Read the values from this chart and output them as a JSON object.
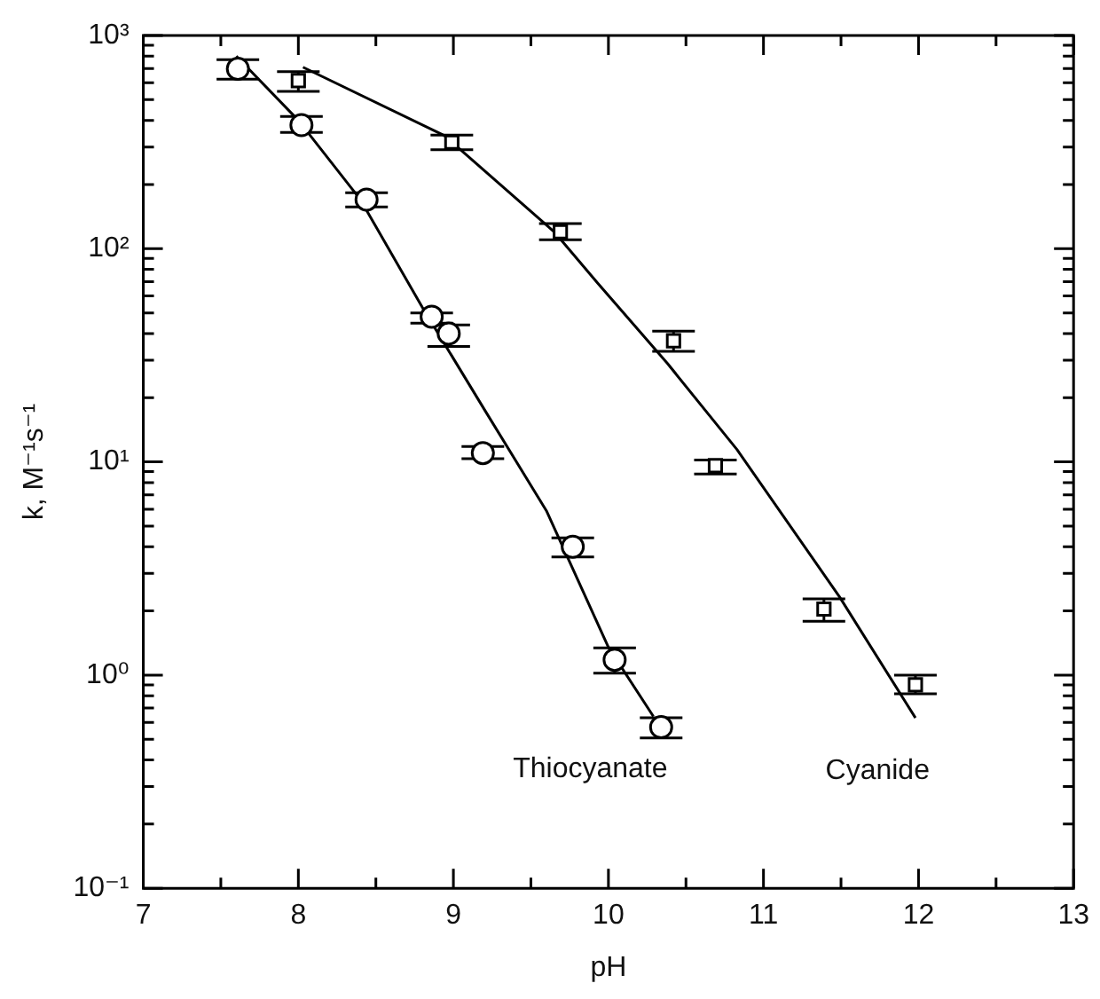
{
  "chart_data": {
    "type": "scatter",
    "xlabel": "pH",
    "ylabel": "k, M⁻¹s⁻¹",
    "log": "y",
    "grid": false,
    "legend": false,
    "xlim": [
      7,
      13
    ],
    "xticks": [
      7,
      {
        "value": 7.5,
        "label": null
      },
      8,
      {
        "value": 8.5,
        "label": null
      },
      9,
      {
        "value": 9.5,
        "label": null
      },
      10,
      {
        "value": 10.5,
        "label": null
      },
      11,
      {
        "value": 11.5,
        "label": null
      },
      12,
      {
        "value": 12.5,
        "label": null
      },
      13
    ],
    "ylim": [
      0.1,
      1000
    ],
    "yticks": [
      {
        "value": 0.1,
        "label": "10⁻¹"
      },
      {
        "value": 0.2,
        "label": null
      },
      {
        "value": 0.3,
        "label": null
      },
      {
        "value": 0.4,
        "label": null
      },
      {
        "value": 0.5,
        "label": null
      },
      {
        "value": 0.6,
        "label": null
      },
      {
        "value": 0.7,
        "label": null
      },
      {
        "value": 0.8,
        "label": null
      },
      {
        "value": 0.9,
        "label": null
      },
      {
        "value": 1,
        "label": "10⁰"
      },
      {
        "value": 2,
        "label": null
      },
      {
        "value": 3,
        "label": null
      },
      {
        "value": 4,
        "label": null
      },
      {
        "value": 5,
        "label": null
      },
      {
        "value": 6,
        "label": null
      },
      {
        "value": 7,
        "label": null
      },
      {
        "value": 8,
        "label": null
      },
      {
        "value": 9,
        "label": null
      },
      {
        "value": 10,
        "label": "10¹"
      },
      {
        "value": 20,
        "label": null
      },
      {
        "value": 30,
        "label": null
      },
      {
        "value": 40,
        "label": null
      },
      {
        "value": 50,
        "label": null
      },
      {
        "value": 60,
        "label": null
      },
      {
        "value": 70,
        "label": null
      },
      {
        "value": 80,
        "label": null
      },
      {
        "value": 90,
        "label": null
      },
      {
        "value": 100,
        "label": "10²"
      },
      {
        "value": 200,
        "label": null
      },
      {
        "value": 300,
        "label": null
      },
      {
        "value": 400,
        "label": null
      },
      {
        "value": 500,
        "label": null
      },
      {
        "value": 600,
        "label": null
      },
      {
        "value": 700,
        "label": null
      },
      {
        "value": 800,
        "label": null
      },
      {
        "value": 900,
        "label": null
      },
      {
        "value": 1000,
        "label": "10³"
      }
    ],
    "series": [
      {
        "type": "scatter",
        "marker": "circle",
        "color": "#000000",
        "x": [
          7.61,
          8.02,
          8.44,
          8.86,
          8.97,
          9.19,
          9.77,
          10.04,
          10.34
        ],
        "values": [
          698,
          380,
          170,
          48,
          40,
          11,
          4.0,
          1.18,
          0.57
        ],
        "errors": [
          [
            624,
            771
          ],
          [
            351,
            417
          ],
          [
            157,
            183
          ],
          [
            44.7,
            50
          ],
          [
            34.8,
            43.9
          ],
          [
            10.35,
            11.8
          ],
          [
            3.58,
            4.4
          ],
          [
            1.02,
            1.34
          ],
          [
            0.507,
            0.63
          ]
        ]
      },
      {
        "type": "scatter",
        "marker": "square",
        "color": "#000000",
        "x": [
          8.0,
          8.99,
          9.69,
          10.42,
          10.69,
          11.39,
          11.98
        ],
        "values": [
          614,
          316,
          120,
          37,
          9.6,
          2.04,
          0.9
        ],
        "errors": [
          [
            547,
            676
          ],
          [
            291,
            341
          ],
          [
            110,
            131
          ],
          [
            33,
            41
          ],
          [
            8.77,
            10.2
          ],
          [
            1.79,
            2.28
          ],
          [
            0.817,
            1.0
          ]
        ]
      },
      {
        "type": "line",
        "name": "Thiocyanate",
        "marker": "none",
        "color": "#000000",
        "x": [
          7.6,
          8.0,
          8.4,
          8.8,
          9.2,
          9.6,
          10.0,
          10.29
        ],
        "values": [
          800,
          400,
          170,
          53,
          17.6,
          5.9,
          1.35,
          0.64
        ]
      },
      {
        "type": "line",
        "name": "Cyanide",
        "marker": "none",
        "color": "#000000",
        "x": [
          8.03,
          8.94,
          9.65,
          9.93,
          10.38,
          10.83,
          11.49,
          11.98
        ],
        "values": [
          710,
          340,
          120,
          69,
          29,
          11.4,
          2.33,
          0.63
        ]
      }
    ]
  }
}
